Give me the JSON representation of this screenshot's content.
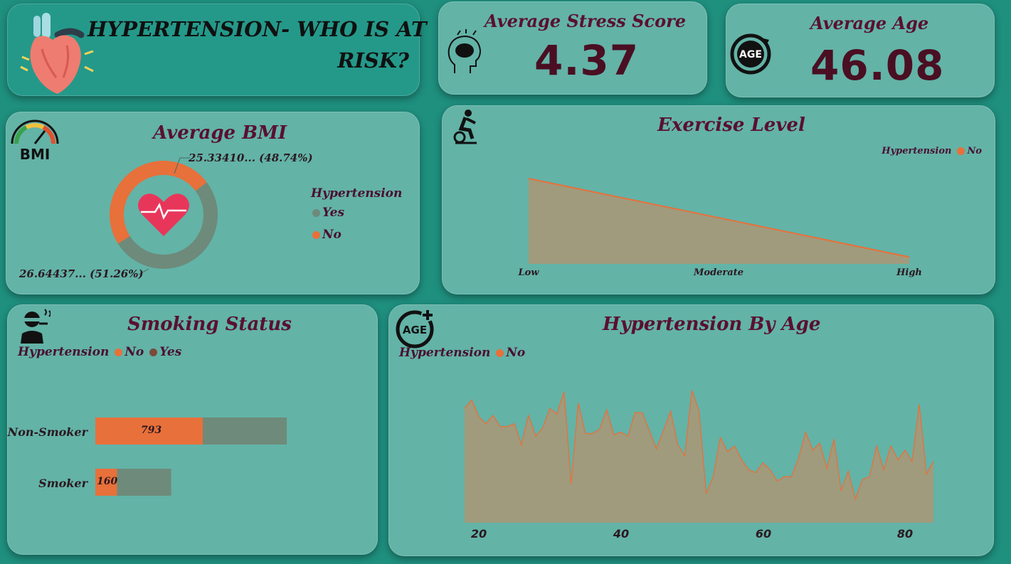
{
  "header": {
    "title_line1": "HYPERTENSION- WHO IS AT",
    "title_line2": "RISK?"
  },
  "kpis": {
    "stress": {
      "label": "Average Stress Score",
      "value": "4.37"
    },
    "age": {
      "label": "Average Age",
      "value": "46.08"
    }
  },
  "colors": {
    "no": "#e8703a",
    "yes": "#6e8a7a",
    "area_fill": "#a09b7c",
    "title": "#5a1030"
  },
  "icons": {
    "heart": "heart-icon",
    "brain": "stress-brain-icon",
    "age": "age-cycle-icon",
    "bmi": "bmi-gauge-icon",
    "exercise": "exercise-bike-icon",
    "smoking": "smoker-icon",
    "age_plus": "age-plus-icon"
  },
  "bmi": {
    "title": "Average BMI",
    "legend_title": "Hypertension",
    "legend": [
      "Yes",
      "No"
    ],
    "label_no": "25.33410... (48.74%)",
    "label_yes": "26.64437... (51.26%)"
  },
  "exercise": {
    "title": "Exercise Level",
    "legend_title": "Hypertension",
    "legend": [
      "No"
    ]
  },
  "smoking": {
    "title": "Smoking Status",
    "legend_title": "Hypertension",
    "legend": [
      "No",
      "Yes"
    ]
  },
  "age_chart": {
    "title": "Hypertension By Age",
    "legend_title": "Hypertension",
    "legend": [
      "No"
    ]
  },
  "chart_data": [
    {
      "type": "pie",
      "title": "Average BMI",
      "categories": [
        "No",
        "Yes"
      ],
      "values": [
        25.3341,
        26.64437
      ],
      "percent": [
        48.74,
        51.26
      ],
      "donut": true
    },
    {
      "type": "area",
      "title": "Exercise Level",
      "categories": [
        "Low",
        "Moderate",
        "High"
      ],
      "series": [
        {
          "name": "No",
          "values": [
            1.0,
            0.54,
            0.08
          ]
        }
      ],
      "ylim": [
        0,
        1
      ]
    },
    {
      "type": "bar",
      "title": "Smoking Status",
      "orientation": "horizontal",
      "stacked": true,
      "categories": [
        "Non-Smoker",
        "Smoker"
      ],
      "series": [
        {
          "name": "No",
          "values": [
            793,
            160
          ]
        },
        {
          "name": "Yes",
          "values": [
            620,
            400
          ]
        }
      ],
      "labels": [
        "793",
        "160"
      ]
    },
    {
      "type": "area",
      "title": "Hypertension By Age",
      "x_ticks": [
        20,
        40,
        60,
        80
      ],
      "xlim": [
        18,
        84
      ],
      "ylim": [
        0,
        100
      ],
      "x": [
        18,
        19,
        20,
        21,
        22,
        23,
        24,
        25,
        26,
        27,
        28,
        29,
        30,
        31,
        32,
        33,
        34,
        35,
        36,
        37,
        38,
        39,
        40,
        41,
        42,
        43,
        44,
        45,
        46,
        47,
        48,
        49,
        50,
        51,
        52,
        53,
        54,
        55,
        56,
        57,
        58,
        59,
        60,
        61,
        62,
        63,
        64,
        65,
        66,
        67,
        68,
        69,
        70,
        71,
        72,
        73,
        74,
        75,
        76,
        77,
        78,
        79,
        80,
        81,
        82,
        83,
        84
      ],
      "series": [
        {
          "name": "No",
          "values": [
            82,
            88,
            76,
            71,
            77,
            69,
            69,
            71,
            56,
            77,
            62,
            68,
            82,
            78,
            94,
            28,
            86,
            64,
            64,
            67,
            81,
            63,
            65,
            62,
            79,
            79,
            66,
            53,
            66,
            80,
            56,
            48,
            95,
            80,
            21,
            33,
            61,
            51,
            55,
            45,
            38,
            36,
            43,
            38,
            30,
            33,
            33,
            46,
            65,
            52,
            57,
            39,
            60,
            23,
            37,
            17,
            31,
            33,
            55,
            38,
            55,
            45,
            52,
            44,
            85,
            35,
            44
          ]
        }
      ]
    }
  ],
  "exercise_axis": [
    "Low",
    "Moderate",
    "High"
  ],
  "age_axis": [
    "20",
    "40",
    "60",
    "80"
  ],
  "smoking_cats": [
    "Non-Smoker",
    "Smoker"
  ],
  "smoking_labels": [
    "793",
    "160"
  ]
}
